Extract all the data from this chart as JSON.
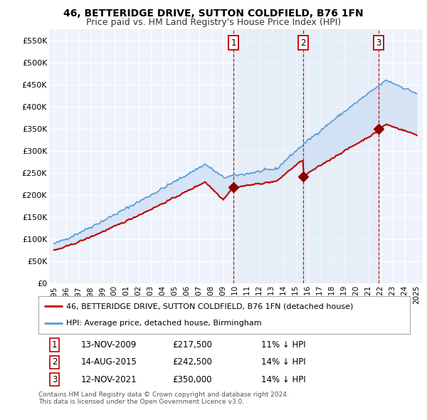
{
  "title": "46, BETTERIDGE DRIVE, SUTTON COLDFIELD, B76 1FN",
  "subtitle": "Price paid vs. HM Land Registry's House Price Index (HPI)",
  "ylim": [
    0,
    575000
  ],
  "yticks": [
    0,
    50000,
    100000,
    150000,
    200000,
    250000,
    300000,
    350000,
    400000,
    450000,
    500000,
    550000
  ],
  "ytick_labels": [
    "£0",
    "£50K",
    "£100K",
    "£150K",
    "£200K",
    "£250K",
    "£300K",
    "£350K",
    "£400K",
    "£450K",
    "£500K",
    "£550K"
  ],
  "background_color": "#ffffff",
  "plot_bg_color": "#eef2fb",
  "grid_color": "#ffffff",
  "hpi_line_color": "#5b9bd5",
  "fill_color": "#c5d9f1",
  "price_line_color": "#c00000",
  "sale_marker_color": "#8b0000",
  "vline_color": "#c00000",
  "sale_box_color": "#c00000",
  "transactions": [
    {
      "date_num": 2009.87,
      "price": 217500,
      "label": "1"
    },
    {
      "date_num": 2015.62,
      "price": 242500,
      "label": "2"
    },
    {
      "date_num": 2021.87,
      "price": 350000,
      "label": "3"
    }
  ],
  "transaction_table": [
    {
      "num": "1",
      "date": "13-NOV-2009",
      "price": "£217,500",
      "hpi": "11% ↓ HPI"
    },
    {
      "num": "2",
      "date": "14-AUG-2015",
      "price": "£242,500",
      "hpi": "14% ↓ HPI"
    },
    {
      "num": "3",
      "date": "12-NOV-2021",
      "price": "£350,000",
      "hpi": "14% ↓ HPI"
    }
  ],
  "legend_entries": [
    {
      "label": "46, BETTERIDGE DRIVE, SUTTON COLDFIELD, B76 1FN (detached house)",
      "color": "#c00000",
      "lw": 2
    },
    {
      "label": "HPI: Average price, detached house, Birmingham",
      "color": "#5b9bd5",
      "lw": 2
    }
  ],
  "footer": "Contains HM Land Registry data © Crown copyright and database right 2024.\nThis data is licensed under the Open Government Licence v3.0.",
  "title_fontsize": 10,
  "subtitle_fontsize": 9
}
